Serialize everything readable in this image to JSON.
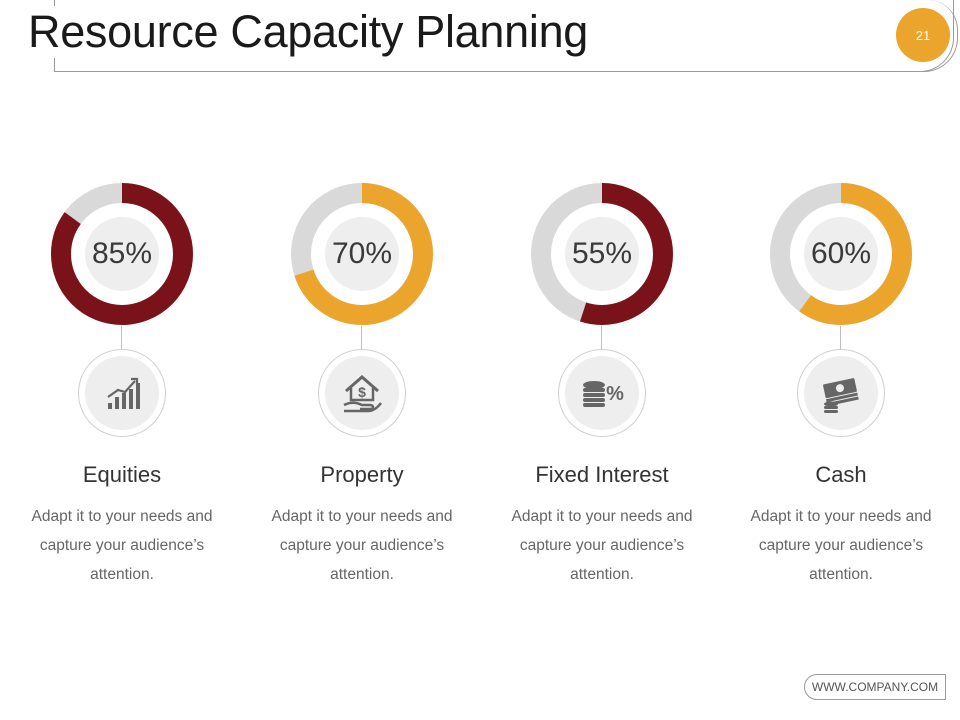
{
  "header": {
    "title": "Resource Capacity Planning",
    "page_number": "21"
  },
  "colors": {
    "maroon": "#7a1219",
    "gold": "#eca52c",
    "track": "#d9d9d9"
  },
  "cards": [
    {
      "percent_label": "85%",
      "percent": 85,
      "color": "#7a1219",
      "icon": "growth-chart-icon",
      "title": "Equities",
      "description": "Adapt it to your needs and capture your audience’s attention."
    },
    {
      "percent_label": "70%",
      "percent": 70,
      "color": "#eca52c",
      "icon": "house-dollar-hand-icon",
      "title": "Property",
      "description": "Adapt it to your needs and capture your audience’s attention."
    },
    {
      "percent_label": "55%",
      "percent": 55,
      "color": "#7a1219",
      "icon": "coins-percent-icon",
      "title": "Fixed Interest",
      "description": "Adapt it to your needs and capture your audience’s attention."
    },
    {
      "percent_label": "60%",
      "percent": 60,
      "color": "#eca52c",
      "icon": "cash-stack-icon",
      "title": "Cash",
      "description": "Adapt it to your needs and capture your audience’s attention."
    }
  ],
  "footer": {
    "website": "WWW.COMPANY.COM"
  }
}
